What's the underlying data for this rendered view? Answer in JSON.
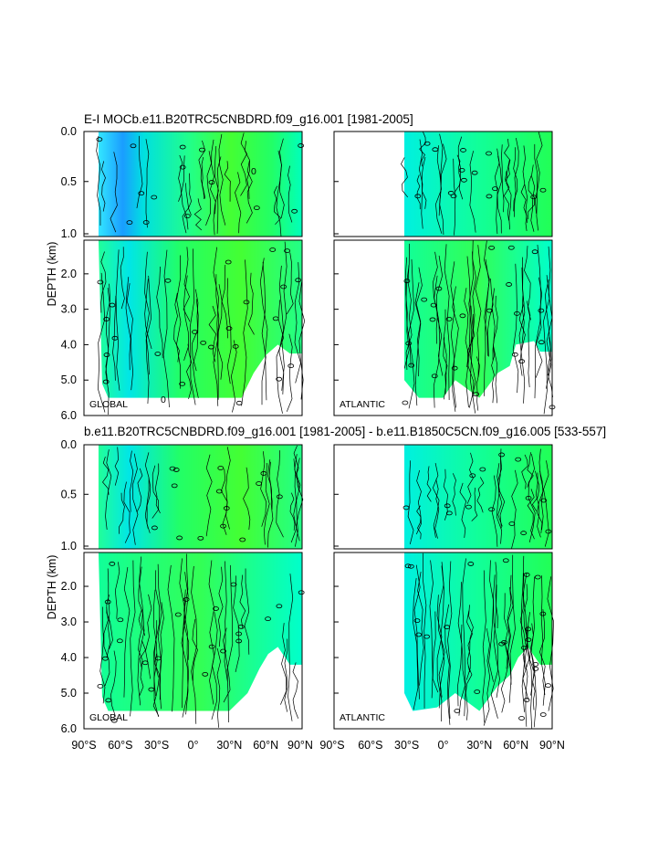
{
  "chart_data": [
    {
      "type": "heatmap",
      "title": "E-I MOCb.e11.B20TRC5CNBDRD.f09_g16.001 [1981-2005]",
      "ylabel": "DEPTH (km)",
      "upper_yticks": [
        "0.0",
        "0.5",
        "1.0"
      ],
      "lower_yticks": [
        "2.0",
        "3.0",
        "4.0",
        "5.0",
        "6.0"
      ],
      "ylim_upper": [
        0,
        1.05
      ],
      "ylim_lower": [
        1.05,
        6.0
      ],
      "xlim": [
        -90,
        90
      ],
      "regions": [
        "GLOBAL",
        "ATLANTIC"
      ],
      "contour_label": "0",
      "fill_colors": [
        "#00ffff",
        "#00ff7f",
        "#33ff33",
        "#66ff00"
      ]
    },
    {
      "type": "heatmap",
      "title": "b.e11.B20TRC5CNBDRD.f09_g16.001 [1981-2005] - b.e11.B1850C5CN.f09_g16.005 [533-557]",
      "ylabel": "DEPTH (km)",
      "upper_yticks": [
        "0.0",
        "0.5",
        "1.0"
      ],
      "lower_yticks": [
        "2.0",
        "3.0",
        "4.0",
        "5.0",
        "6.0"
      ],
      "ylim_upper": [
        0,
        1.05
      ],
      "ylim_lower": [
        1.05,
        6.0
      ],
      "xlim": [
        -90,
        90
      ],
      "xticks": [
        "90°S",
        "60°S",
        "30°S",
        "0°",
        "30°N",
        "60°N",
        "90°N"
      ],
      "regions": [
        "GLOBAL",
        "ATLANTIC"
      ],
      "fill_colors": [
        "#00ffcc",
        "#22ff66",
        "#44ff22"
      ]
    }
  ]
}
